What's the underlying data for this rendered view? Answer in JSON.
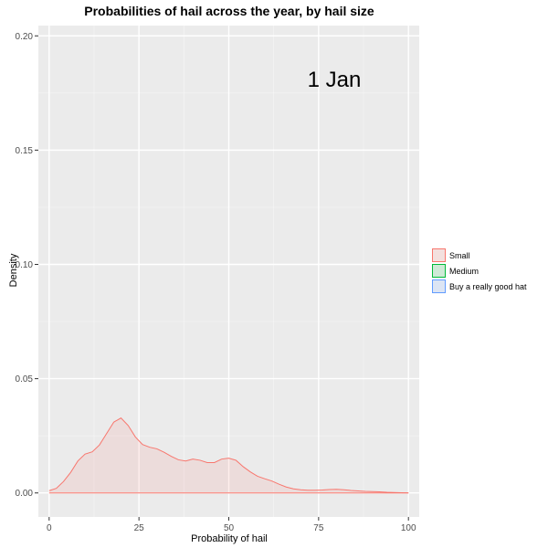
{
  "chart_data": {
    "type": "area",
    "title": "Probabilities of hail across the year, by hail size",
    "xlabel": "Probability of hail",
    "ylabel": "Density",
    "xlim": [
      -3,
      103
    ],
    "ylim": [
      -0.0105,
      0.2045
    ],
    "x_ticks": [
      0,
      25,
      50,
      75,
      100
    ],
    "x_tick_labels": [
      "0",
      "25",
      "50",
      "75",
      "100"
    ],
    "y_ticks": [
      0.0,
      0.05,
      0.1,
      0.15,
      0.2
    ],
    "y_tick_labels": [
      "0.00",
      "0.05",
      "0.10",
      "0.15",
      "0.20"
    ],
    "annotation": "1 Jan",
    "legend_position": "right",
    "series": [
      {
        "name": "Small",
        "color": "#F8766D",
        "x": [
          0,
          2,
          4,
          6,
          8,
          10,
          12,
          14,
          16,
          18,
          20,
          22,
          24,
          26,
          28,
          30,
          32,
          34,
          36,
          38,
          40,
          42,
          44,
          46,
          48,
          50,
          52,
          54,
          56,
          58,
          60,
          62,
          64,
          66,
          68,
          70,
          72,
          74,
          76,
          78,
          80,
          82,
          84,
          86,
          88,
          90,
          92,
          94,
          96,
          98,
          100
        ],
        "values": [
          0.001,
          0.002,
          0.005,
          0.009,
          0.014,
          0.017,
          0.018,
          0.021,
          0.026,
          0.031,
          0.0328,
          0.0295,
          0.0245,
          0.0212,
          0.02,
          0.0193,
          0.0178,
          0.016,
          0.0145,
          0.014,
          0.0148,
          0.0143,
          0.0133,
          0.0133,
          0.0148,
          0.0152,
          0.0143,
          0.0115,
          0.0092,
          0.0073,
          0.0062,
          0.0052,
          0.0038,
          0.0026,
          0.0018,
          0.0014,
          0.0012,
          0.0012,
          0.0013,
          0.0015,
          0.0016,
          0.0014,
          0.0011,
          0.0009,
          0.0007,
          0.0006,
          0.0005,
          0.0003,
          0.0002,
          0.0001,
          5e-05
        ]
      },
      {
        "name": "Medium",
        "color": "#00BA38",
        "x": [],
        "values": []
      },
      {
        "name": "Buy a really good hat",
        "color": "#619CFF",
        "x": [],
        "values": []
      }
    ]
  }
}
